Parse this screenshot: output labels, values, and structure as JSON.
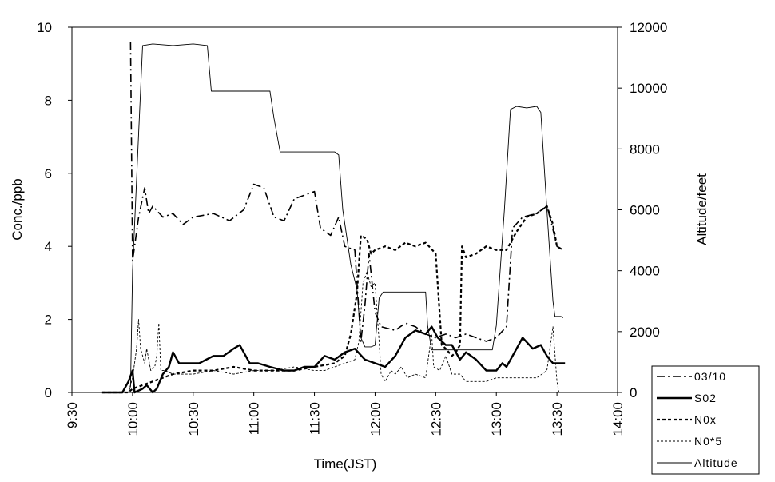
{
  "chart_data": {
    "type": "line",
    "title": "",
    "xlabel": "Time(JST)",
    "ylabel": "Conc./ppb",
    "y2label": "Altitude/feet",
    "xlim": [
      "9:30",
      "14:00"
    ],
    "xticks": [
      "9:30",
      "10:00",
      "10:30",
      "11:00",
      "11:30",
      "12:00",
      "12:30",
      "13:00",
      "13:30",
      "14:00"
    ],
    "ylim": [
      0,
      10
    ],
    "yticks": [
      "0",
      "2",
      "4",
      "6",
      "8",
      "10"
    ],
    "y2lim": [
      0,
      12000
    ],
    "y2ticks": [
      "0",
      "2000",
      "4000",
      "6000",
      "8000",
      "10000",
      "12000"
    ],
    "grid": false,
    "legend_position": "bottom-right",
    "legend": [
      "03/10",
      "S02",
      "N0x",
      "N0*5",
      "Altitude"
    ],
    "series": [
      {
        "name": "03/10",
        "axis": "left",
        "style": "dash-dot",
        "points": [
          [
            "9:59",
            9.6
          ],
          [
            "10:00",
            3.6
          ],
          [
            "10:03",
            4.8
          ],
          [
            "10:06",
            5.6
          ],
          [
            "10:08",
            4.9
          ],
          [
            "10:10",
            5.1
          ],
          [
            "10:15",
            4.8
          ],
          [
            "10:20",
            4.9
          ],
          [
            "10:25",
            4.6
          ],
          [
            "10:30",
            4.8
          ],
          [
            "10:40",
            4.9
          ],
          [
            "10:48",
            4.7
          ],
          [
            "10:55",
            5.0
          ],
          [
            "11:00",
            5.7
          ],
          [
            "11:05",
            5.6
          ],
          [
            "11:10",
            4.8
          ],
          [
            "11:15",
            4.7
          ],
          [
            "11:20",
            5.3
          ],
          [
            "11:25",
            5.4
          ],
          [
            "11:30",
            5.5
          ],
          [
            "11:33",
            4.5
          ],
          [
            "11:38",
            4.3
          ],
          [
            "11:42",
            4.8
          ],
          [
            "11:45",
            4.0
          ],
          [
            "11:50",
            3.9
          ],
          [
            "11:53",
            1.4
          ],
          [
            "11:55",
            2.4
          ],
          [
            "11:57",
            3.8
          ],
          [
            "12:00",
            2.2
          ],
          [
            "12:03",
            1.8
          ],
          [
            "12:10",
            1.7
          ],
          [
            "12:15",
            1.9
          ],
          [
            "12:20",
            1.8
          ],
          [
            "12:25",
            1.6
          ],
          [
            "12:30",
            1.5
          ],
          [
            "12:35",
            1.6
          ],
          [
            "12:40",
            1.5
          ],
          [
            "12:45",
            1.6
          ],
          [
            "12:55",
            1.4
          ],
          [
            "13:00",
            1.5
          ],
          [
            "13:05",
            1.8
          ],
          [
            "13:08",
            4.5
          ],
          [
            "13:13",
            4.8
          ],
          [
            "13:20",
            4.9
          ],
          [
            "13:25",
            5.1
          ],
          [
            "13:27",
            4.7
          ],
          [
            "13:30",
            4.0
          ],
          [
            "13:33",
            3.9
          ]
        ]
      },
      {
        "name": "S02",
        "axis": "left",
        "style": "solid-bold",
        "points": [
          [
            "9:45",
            0.0
          ],
          [
            "9:55",
            0.0
          ],
          [
            "9:58",
            0.3
          ],
          [
            "10:00",
            0.6
          ],
          [
            "10:01",
            0.0
          ],
          [
            "10:05",
            0.1
          ],
          [
            "10:07",
            0.2
          ],
          [
            "10:10",
            0.0
          ],
          [
            "10:12",
            0.1
          ],
          [
            "10:15",
            0.5
          ],
          [
            "10:18",
            0.7
          ],
          [
            "10:20",
            1.1
          ],
          [
            "10:23",
            0.8
          ],
          [
            "10:28",
            0.8
          ],
          [
            "10:33",
            0.8
          ],
          [
            "10:40",
            1.0
          ],
          [
            "10:45",
            1.0
          ],
          [
            "10:50",
            1.2
          ],
          [
            "10:53",
            1.3
          ],
          [
            "10:58",
            0.8
          ],
          [
            "11:02",
            0.8
          ],
          [
            "11:08",
            0.7
          ],
          [
            "11:15",
            0.6
          ],
          [
            "11:20",
            0.6
          ],
          [
            "11:25",
            0.7
          ],
          [
            "11:30",
            0.7
          ],
          [
            "11:35",
            1.0
          ],
          [
            "11:40",
            0.9
          ],
          [
            "11:45",
            1.1
          ],
          [
            "11:50",
            1.2
          ],
          [
            "11:55",
            0.9
          ],
          [
            "12:00",
            0.8
          ],
          [
            "12:05",
            0.7
          ],
          [
            "12:10",
            1.0
          ],
          [
            "12:15",
            1.5
          ],
          [
            "12:20",
            1.7
          ],
          [
            "12:25",
            1.6
          ],
          [
            "12:28",
            1.8
          ],
          [
            "12:31",
            1.5
          ],
          [
            "12:35",
            1.3
          ],
          [
            "12:38",
            1.3
          ],
          [
            "12:42",
            0.9
          ],
          [
            "12:45",
            1.1
          ],
          [
            "12:50",
            0.9
          ],
          [
            "12:55",
            0.6
          ],
          [
            "13:00",
            0.6
          ],
          [
            "13:03",
            0.8
          ],
          [
            "13:05",
            0.7
          ],
          [
            "13:08",
            1.0
          ],
          [
            "13:13",
            1.5
          ],
          [
            "13:18",
            1.2
          ],
          [
            "13:22",
            1.3
          ],
          [
            "13:25",
            1.0
          ],
          [
            "13:28",
            0.8
          ],
          [
            "13:32",
            0.8
          ],
          [
            "13:34",
            0.8
          ]
        ]
      },
      {
        "name": "N0x",
        "axis": "left",
        "style": "dotted",
        "points": [
          [
            "9:45",
            0.0
          ],
          [
            "9:58",
            0.0
          ],
          [
            "10:00",
            0.1
          ],
          [
            "10:05",
            0.2
          ],
          [
            "10:10",
            0.3
          ],
          [
            "10:15",
            0.4
          ],
          [
            "10:20",
            0.5
          ],
          [
            "10:30",
            0.6
          ],
          [
            "10:40",
            0.6
          ],
          [
            "10:50",
            0.7
          ],
          [
            "11:00",
            0.6
          ],
          [
            "11:10",
            0.6
          ],
          [
            "11:20",
            0.6
          ],
          [
            "11:30",
            0.7
          ],
          [
            "11:40",
            0.8
          ],
          [
            "11:45",
            1.0
          ],
          [
            "11:48",
            1.6
          ],
          [
            "11:51",
            2.7
          ],
          [
            "11:53",
            4.3
          ],
          [
            "11:56",
            4.2
          ],
          [
            "11:58",
            3.8
          ],
          [
            "12:00",
            3.9
          ],
          [
            "12:05",
            4.0
          ],
          [
            "12:10",
            3.9
          ],
          [
            "12:15",
            4.1
          ],
          [
            "12:20",
            4.0
          ],
          [
            "12:25",
            4.1
          ],
          [
            "12:30",
            3.8
          ],
          [
            "12:33",
            1.3
          ],
          [
            "12:35",
            1.2
          ],
          [
            "12:38",
            1.0
          ],
          [
            "12:40",
            1.1
          ],
          [
            "12:42",
            1.3
          ],
          [
            "12:43",
            4.0
          ],
          [
            "12:45",
            3.7
          ],
          [
            "12:50",
            3.8
          ],
          [
            "12:55",
            4.0
          ],
          [
            "13:00",
            3.9
          ],
          [
            "13:05",
            3.9
          ],
          [
            "13:10",
            4.4
          ],
          [
            "13:15",
            4.8
          ],
          [
            "13:20",
            4.9
          ],
          [
            "13:25",
            5.1
          ],
          [
            "13:28",
            4.6
          ],
          [
            "13:30",
            4.0
          ],
          [
            "13:33",
            3.9
          ]
        ]
      },
      {
        "name": "N0*5",
        "axis": "left",
        "style": "dashed-thin",
        "points": [
          [
            "9:45",
            0.0
          ],
          [
            "9:58",
            0.0
          ],
          [
            "10:00",
            0.4
          ],
          [
            "10:02",
            1.2
          ],
          [
            "10:03",
            2.0
          ],
          [
            "10:04",
            1.2
          ],
          [
            "10:06",
            0.8
          ],
          [
            "10:07",
            1.2
          ],
          [
            "10:09",
            0.6
          ],
          [
            "10:11",
            0.7
          ],
          [
            "10:12",
            1.0
          ],
          [
            "10:13",
            1.9
          ],
          [
            "10:14",
            0.6
          ],
          [
            "10:16",
            0.6
          ],
          [
            "10:20",
            0.5
          ],
          [
            "10:30",
            0.5
          ],
          [
            "10:40",
            0.6
          ],
          [
            "10:50",
            0.5
          ],
          [
            "11:00",
            0.6
          ],
          [
            "11:10",
            0.6
          ],
          [
            "11:20",
            0.7
          ],
          [
            "11:30",
            0.6
          ],
          [
            "11:35",
            0.6
          ],
          [
            "11:40",
            0.7
          ],
          [
            "11:45",
            0.8
          ],
          [
            "11:50",
            0.9
          ],
          [
            "11:52",
            1.4
          ],
          [
            "11:54",
            3.0
          ],
          [
            "11:56",
            3.3
          ],
          [
            "11:58",
            2.9
          ],
          [
            "12:00",
            3.0
          ],
          [
            "12:02",
            1.4
          ],
          [
            "12:03",
            0.5
          ],
          [
            "12:05",
            0.3
          ],
          [
            "12:08",
            0.6
          ],
          [
            "12:10",
            0.5
          ],
          [
            "12:13",
            0.7
          ],
          [
            "12:16",
            0.4
          ],
          [
            "12:20",
            0.5
          ],
          [
            "12:25",
            0.4
          ],
          [
            "12:28",
            1.6
          ],
          [
            "12:29",
            0.7
          ],
          [
            "12:32",
            0.6
          ],
          [
            "12:35",
            1.0
          ],
          [
            "12:38",
            0.5
          ],
          [
            "12:42",
            0.5
          ],
          [
            "12:45",
            0.3
          ],
          [
            "12:50",
            0.3
          ],
          [
            "12:55",
            0.3
          ],
          [
            "13:00",
            0.4
          ],
          [
            "13:05",
            0.4
          ],
          [
            "13:10",
            0.4
          ],
          [
            "13:15",
            0.4
          ],
          [
            "13:20",
            0.4
          ],
          [
            "13:25",
            0.6
          ],
          [
            "13:28",
            1.8
          ],
          [
            "13:30",
            0.3
          ],
          [
            "13:31",
            0.0
          ]
        ]
      },
      {
        "name": "Altitude",
        "axis": "right",
        "style": "solid-thin",
        "points": [
          [
            "9:45",
            0
          ],
          [
            "9:58",
            0
          ],
          [
            "9:59",
            200
          ],
          [
            "10:00",
            4000
          ],
          [
            "10:03",
            8500
          ],
          [
            "10:05",
            11400
          ],
          [
            "10:10",
            11450
          ],
          [
            "10:20",
            11400
          ],
          [
            "10:30",
            11450
          ],
          [
            "10:37",
            11400
          ],
          [
            "10:39",
            9900
          ],
          [
            "10:45",
            9900
          ],
          [
            "10:55",
            9900
          ],
          [
            "11:05",
            9900
          ],
          [
            "11:08",
            9900
          ],
          [
            "11:10",
            9000
          ],
          [
            "11:13",
            7900
          ],
          [
            "11:20",
            7900
          ],
          [
            "11:30",
            7900
          ],
          [
            "11:40",
            7900
          ],
          [
            "11:42",
            7800
          ],
          [
            "11:44",
            6000
          ],
          [
            "11:48",
            4200
          ],
          [
            "11:51",
            3400
          ],
          [
            "11:53",
            1800
          ],
          [
            "11:55",
            1500
          ],
          [
            "11:58",
            1500
          ],
          [
            "12:00",
            1550
          ],
          [
            "12:02",
            3100
          ],
          [
            "12:04",
            3300
          ],
          [
            "12:10",
            3300
          ],
          [
            "12:20",
            3300
          ],
          [
            "12:25",
            3300
          ],
          [
            "12:26",
            2200
          ],
          [
            "12:28",
            1400
          ],
          [
            "12:30",
            1400
          ],
          [
            "12:40",
            1400
          ],
          [
            "12:50",
            1400
          ],
          [
            "12:58",
            1400
          ],
          [
            "13:00",
            2200
          ],
          [
            "13:04",
            6000
          ],
          [
            "13:07",
            9300
          ],
          [
            "13:10",
            9400
          ],
          [
            "13:15",
            9350
          ],
          [
            "13:20",
            9400
          ],
          [
            "13:22",
            9200
          ],
          [
            "13:25",
            6000
          ],
          [
            "13:28",
            3000
          ],
          [
            "13:29",
            2500
          ],
          [
            "13:32",
            2500
          ],
          [
            "13:33",
            2450
          ]
        ]
      }
    ]
  }
}
